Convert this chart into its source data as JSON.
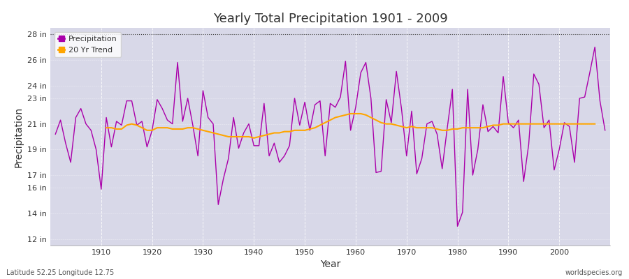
{
  "title": "Yearly Total Precipitation 1901 - 2009",
  "xlabel": "Year",
  "ylabel": "Precipitation",
  "precipitation_color": "#AA00AA",
  "trend_color": "#FFA500",
  "fig_bg_color": "#FFFFFF",
  "plot_bg_color": "#D8D8E8",
  "dotted_line_y": 28,
  "years": [
    1901,
    1902,
    1903,
    1904,
    1905,
    1906,
    1907,
    1908,
    1909,
    1910,
    1911,
    1912,
    1913,
    1914,
    1915,
    1916,
    1917,
    1918,
    1919,
    1920,
    1921,
    1922,
    1923,
    1924,
    1925,
    1926,
    1927,
    1928,
    1929,
    1930,
    1931,
    1932,
    1933,
    1934,
    1935,
    1936,
    1937,
    1938,
    1939,
    1940,
    1941,
    1942,
    1943,
    1944,
    1945,
    1946,
    1947,
    1948,
    1949,
    1950,
    1951,
    1952,
    1953,
    1954,
    1955,
    1956,
    1957,
    1958,
    1959,
    1960,
    1961,
    1962,
    1963,
    1964,
    1965,
    1966,
    1967,
    1968,
    1969,
    1970,
    1971,
    1972,
    1973,
    1974,
    1975,
    1976,
    1977,
    1978,
    1979,
    1980,
    1981,
    1982,
    1983,
    1984,
    1985,
    1986,
    1987,
    1988,
    1989,
    1990,
    1991,
    1992,
    1993,
    1994,
    1995,
    1996,
    1997,
    1998,
    1999,
    2000,
    2001,
    2002,
    2003,
    2004,
    2005,
    2006,
    2007,
    2008,
    2009
  ],
  "precip": [
    20.2,
    21.3,
    19.5,
    18.0,
    21.5,
    22.2,
    21.0,
    20.5,
    19.0,
    15.9,
    21.5,
    19.2,
    21.2,
    20.9,
    22.8,
    22.8,
    20.9,
    21.2,
    19.2,
    20.5,
    22.9,
    22.2,
    21.3,
    21.0,
    25.8,
    21.2,
    23.0,
    20.9,
    18.5,
    23.6,
    21.5,
    21.0,
    14.7,
    16.7,
    18.3,
    21.5,
    19.1,
    20.3,
    21.0,
    19.3,
    19.3,
    22.6,
    18.5,
    19.5,
    18.0,
    18.5,
    19.3,
    23.0,
    20.9,
    22.7,
    20.5,
    22.5,
    22.8,
    18.5,
    22.6,
    22.3,
    23.1,
    25.9,
    20.5,
    22.3,
    25.0,
    25.8,
    23.0,
    17.2,
    17.3,
    22.9,
    21.1,
    25.1,
    22.2,
    18.5,
    22.0,
    17.1,
    18.3,
    21.0,
    21.2,
    20.2,
    17.5,
    20.7,
    23.7,
    13.0,
    14.1,
    23.7,
    17.0,
    19.0,
    22.5,
    20.4,
    20.8,
    20.3,
    24.7,
    21.1,
    20.7,
    21.3,
    16.5,
    19.4,
    24.9,
    24.1,
    20.7,
    21.3,
    17.4,
    19.0,
    21.1,
    20.8,
    18.0,
    23.0,
    23.1,
    25.0,
    27.0,
    22.8,
    20.5
  ],
  "trend": [
    null,
    null,
    null,
    null,
    null,
    null,
    null,
    null,
    null,
    null,
    20.7,
    20.7,
    20.6,
    20.6,
    20.9,
    21.0,
    20.9,
    20.7,
    20.5,
    20.5,
    20.7,
    20.7,
    20.7,
    20.6,
    20.6,
    20.6,
    20.7,
    20.7,
    20.6,
    20.5,
    20.4,
    20.3,
    20.2,
    20.1,
    20.0,
    20.0,
    20.0,
    20.0,
    20.0,
    19.9,
    20.0,
    20.1,
    20.2,
    20.3,
    20.3,
    20.4,
    20.4,
    20.5,
    20.5,
    20.5,
    20.6,
    20.7,
    20.9,
    21.1,
    21.3,
    21.5,
    21.6,
    21.7,
    21.8,
    21.8,
    21.8,
    21.7,
    21.5,
    21.3,
    21.1,
    21.0,
    21.0,
    20.9,
    20.8,
    20.7,
    20.8,
    20.7,
    20.7,
    20.7,
    20.7,
    20.6,
    20.5,
    20.5,
    20.6,
    20.6,
    20.7,
    20.7,
    20.7,
    20.7,
    20.7,
    20.8,
    20.9,
    20.9,
    21.0,
    21.0,
    21.0,
    21.0,
    21.0,
    21.0,
    21.0,
    21.0,
    21.0,
    21.0,
    21.0,
    21.0,
    21.0,
    21.0,
    21.0,
    21.0,
    21.0,
    21.0,
    21.0,
    null,
    null
  ],
  "yticks": [
    12,
    14,
    16,
    17,
    19,
    21,
    23,
    24,
    26,
    28
  ],
  "ylim": [
    11.5,
    28.5
  ],
  "xlim": [
    1900,
    2010
  ],
  "bottom_left": "Latitude 52.25 Longitude 12.75",
  "bottom_right": "worldspecies.org",
  "legend_labels": [
    "Precipitation",
    "20 Yr Trend"
  ]
}
